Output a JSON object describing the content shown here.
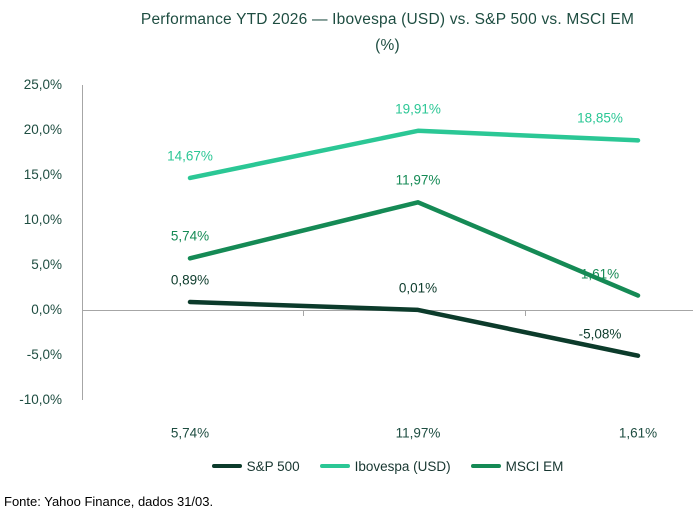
{
  "title": {
    "line1": "Performance YTD 2026 — Ibovespa (USD) vs. S&P 500 vs. MSCI EM",
    "line2": "(%)"
  },
  "footer": {
    "source": "Fonte: Yahoo Finance, dados 31/03."
  },
  "colors": {
    "sp500": "#0c3b2b",
    "ibovespa": "#2bc795",
    "msci_em": "#158a55",
    "axis": "#a6a6a6",
    "text_green": "#1e4d41"
  },
  "y_axis": {
    "ticks": [
      "25,0%",
      "20,0%",
      "15,0%",
      "10,0%",
      "5,0%",
      "0,0%",
      "-5,0%",
      "-10,0%"
    ]
  },
  "x_axis": {
    "labels": [
      "5,74%",
      "11,97%",
      "1,61%"
    ]
  },
  "legend": [
    {
      "label": "S&P 500",
      "color": "#0c3b2b"
    },
    {
      "label": "Ibovespa (USD)",
      "color": "#2bc795"
    },
    {
      "label": "MSCI EM",
      "color": "#158a55"
    }
  ],
  "chart_data": {
    "type": "line",
    "title": "Performance YTD 2026 — Ibovespa (USD) vs. S&P 500 vs. MSCI EM (%)",
    "categories": [
      "5,74%",
      "11,97%",
      "1,61%"
    ],
    "series": [
      {
        "name": "S&P 500",
        "values": [
          0.89,
          0.01,
          -5.08
        ],
        "labels": [
          "0,89%",
          "0,01%",
          "-5,08%"
        ],
        "color": "#0c3b2b"
      },
      {
        "name": "Ibovespa (USD)",
        "values": [
          14.67,
          19.91,
          18.85
        ],
        "labels": [
          "14,67%",
          "19,91%",
          "18,85%"
        ],
        "color": "#2bc795"
      },
      {
        "name": "MSCI EM",
        "values": [
          5.74,
          11.97,
          1.61
        ],
        "labels": [
          "5,74%",
          "11,97%",
          "1,61%"
        ],
        "color": "#158a55"
      }
    ],
    "ylim": [
      -10,
      25
    ],
    "y_tick_step": 5,
    "number_format": "pt-BR comma decimals",
    "grid": false,
    "legend_position": "bottom",
    "source": "Fonte: Yahoo Finance, dados 31/03."
  }
}
